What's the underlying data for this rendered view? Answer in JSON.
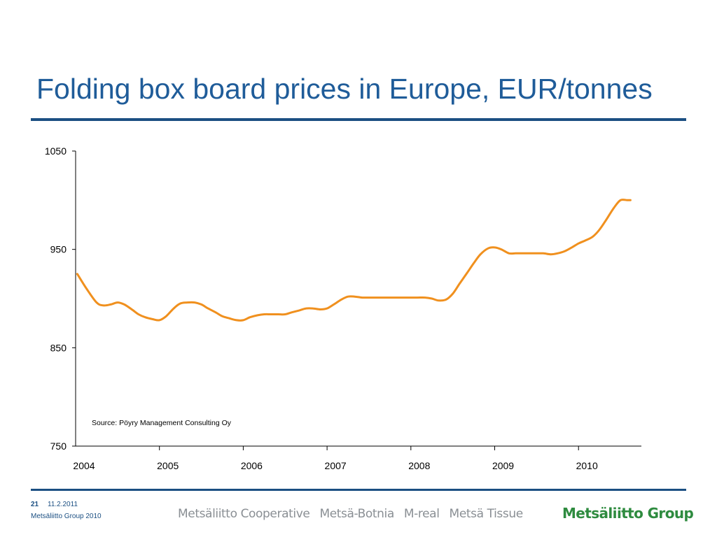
{
  "slide": {
    "title": "Folding box board prices in Europe, EUR/tonnes"
  },
  "footer": {
    "page_number": "21",
    "date": "11.2.2011",
    "copyright": "Metsäliitto Group 2010",
    "brands": [
      "Metsäliitto Cooperative",
      "Metsä-Botnia",
      "M-real",
      "Metsä Tissue"
    ],
    "group_logo": "Metsäliitto Group"
  },
  "colors": {
    "title": "#1f5c99",
    "rule": "#1b4f82",
    "series_line": "#f0901e",
    "logo_green": "#2e8b3f",
    "brands_gray": "#8a8f94"
  },
  "chart_data": {
    "type": "line",
    "title": "Folding box board prices in Europe, EUR/tonnes",
    "xlabel": "",
    "ylabel": "",
    "x_ticks": [
      "2004",
      "2005",
      "2006",
      "2007",
      "2008",
      "2009",
      "2010"
    ],
    "y_ticks": [
      "750",
      "850",
      "950",
      "1050"
    ],
    "xlim": [
      2004.0,
      2010.75
    ],
    "ylim": [
      750,
      1050
    ],
    "grid": false,
    "legend": "none",
    "annotation": "Source: Pöyry Management Consulting Oy",
    "series": [
      {
        "x": [
          2004.02,
          2004.13,
          2004.25,
          2004.33,
          2004.42,
          2004.5,
          2004.58,
          2004.67,
          2004.75,
          2004.83,
          2004.92,
          2005.0,
          2005.08,
          2005.17,
          2005.25,
          2005.33,
          2005.42,
          2005.5,
          2005.58,
          2005.67,
          2005.75,
          2005.83,
          2005.92,
          2006.0,
          2006.08,
          2006.17,
          2006.25,
          2006.33,
          2006.42,
          2006.5,
          2006.58,
          2006.67,
          2006.75,
          2006.83,
          2006.92,
          2007.0,
          2007.08,
          2007.17,
          2007.25,
          2007.33,
          2007.42,
          2007.5,
          2007.58,
          2007.67,
          2007.75,
          2007.83,
          2007.92,
          2008.0,
          2008.08,
          2008.17,
          2008.25,
          2008.33,
          2008.42,
          2008.5,
          2008.58,
          2008.67,
          2008.75,
          2008.83,
          2008.92,
          2009.0,
          2009.08,
          2009.17,
          2009.25,
          2009.33,
          2009.42,
          2009.5,
          2009.58,
          2009.67,
          2009.75,
          2009.83,
          2009.92,
          2010.0,
          2010.08,
          2010.17,
          2010.25,
          2010.33,
          2010.42,
          2010.5,
          2010.58,
          2010.62
        ],
        "y": [
          925,
          910,
          896,
          893,
          894,
          896,
          894,
          889,
          884,
          881,
          879,
          878,
          882,
          890,
          895,
          896,
          896,
          894,
          890,
          886,
          882,
          880,
          878,
          878,
          881,
          883,
          884,
          884,
          884,
          884,
          886,
          888,
          890,
          890,
          889,
          890,
          894,
          899,
          902,
          902,
          901,
          901,
          901,
          901,
          901,
          901,
          901,
          901,
          901,
          901,
          900,
          898,
          899,
          905,
          915,
          926,
          936,
          945,
          951,
          952,
          950,
          946,
          946,
          946,
          946,
          946,
          946,
          945,
          946,
          948,
          952,
          956,
          959,
          963,
          970,
          980,
          992,
          1000,
          1000,
          1000
        ]
      }
    ]
  }
}
